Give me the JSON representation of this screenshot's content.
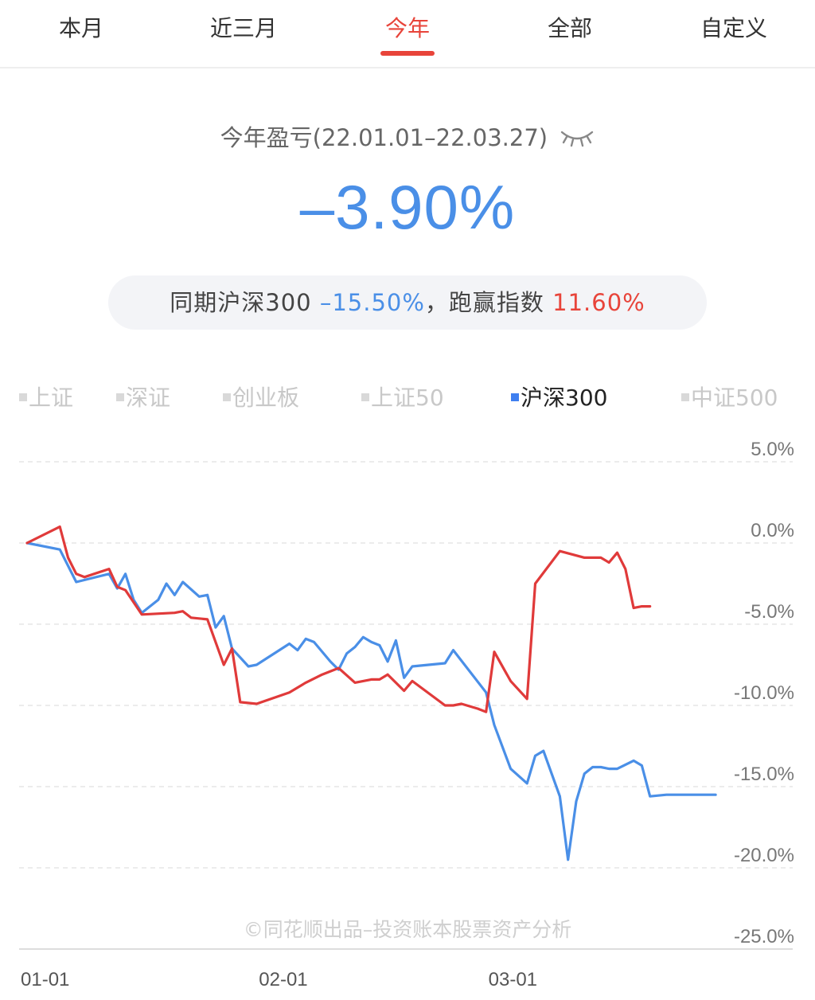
{
  "tabs": [
    {
      "label": "本月",
      "active": false
    },
    {
      "label": "近三月",
      "active": false
    },
    {
      "label": "今年",
      "active": true
    },
    {
      "label": "全部",
      "active": false
    },
    {
      "label": "自定义",
      "active": false
    }
  ],
  "summary": {
    "period_label": "今年盈亏(22.01.01–22.03.27)",
    "value": "–3.90%",
    "compare_prefix": "同期沪深300 ",
    "index_return": "–15.50%",
    "compare_mid": "，跑赢指数 ",
    "excess_return": "11.60%"
  },
  "legend": [
    {
      "label": "上证",
      "active": false
    },
    {
      "label": "深证",
      "active": false
    },
    {
      "label": "创业板",
      "active": false
    },
    {
      "label": "上证50",
      "active": false
    },
    {
      "label": "沪深300",
      "active": true
    },
    {
      "label": "中证500",
      "active": false
    }
  ],
  "watermark": "©同花顺出品–投资账本股票资产分析",
  "colors": {
    "accent": "#e8443a",
    "index": "#4a8fe7",
    "portfolio": "#e03a3a"
  },
  "chart_data": {
    "type": "line",
    "y_ticks": [
      "5.0%",
      "0.0%",
      "-5.0%",
      "-10.0%",
      "-15.0%",
      "-20.0%",
      "-25.0%"
    ],
    "ylim": [
      -25,
      5
    ],
    "x_ticks": [
      "01-01",
      "02-01",
      "03-01"
    ],
    "xlim": [
      0,
      87
    ],
    "grid": true,
    "series": [
      {
        "name": "沪深300",
        "color": "#4a8fe7",
        "x": [
          0,
          4,
          6,
          10,
          11,
          12,
          13,
          14,
          16,
          17,
          18,
          19,
          21,
          22,
          23,
          24,
          25,
          27,
          28,
          32,
          33,
          34,
          35,
          37,
          38,
          39,
          40,
          41,
          42,
          43,
          44,
          45,
          46,
          47,
          51,
          52,
          56,
          57,
          59,
          61,
          62,
          63,
          64,
          65,
          66,
          67,
          68,
          69,
          70,
          71,
          72,
          74,
          75,
          76,
          78,
          80,
          82,
          84
        ],
        "y": [
          0,
          -0.4,
          -2.4,
          -1.9,
          -2.8,
          -1.9,
          -3.5,
          -4.3,
          -3.5,
          -2.5,
          -3.2,
          -2.4,
          -3.3,
          -3.2,
          -5.2,
          -4.5,
          -6.5,
          -7.6,
          -7.5,
          -6.2,
          -6.6,
          -5.9,
          -6.1,
          -7.3,
          -7.8,
          -6.8,
          -6.4,
          -5.8,
          -6.1,
          -6.3,
          -7.3,
          -6.0,
          -8.3,
          -7.6,
          -7.4,
          -6.6,
          -9.2,
          -11.2,
          -13.9,
          -14.8,
          -13.1,
          -12.8,
          -14.2,
          -15.6,
          -19.5,
          -15.9,
          -14.2,
          -13.8,
          -13.8,
          -13.9,
          -13.9,
          -13.4,
          -13.7,
          -15.6,
          -15.5,
          -15.5,
          -15.5,
          -15.5
        ]
      },
      {
        "name": "",
        "color": "#e03a3a",
        "x": [
          0,
          4,
          5,
          6,
          7,
          10,
          11,
          12,
          14,
          18,
          19,
          20,
          22,
          24,
          25,
          26,
          28,
          32,
          34,
          36,
          38,
          40,
          42,
          43,
          44,
          46,
          47,
          51,
          52,
          53,
          55,
          56,
          57,
          59,
          61,
          62,
          65,
          68,
          70,
          71,
          72,
          73,
          74,
          75,
          76
        ],
        "y": [
          0,
          1,
          -0.9,
          -1.9,
          -2.1,
          -1.6,
          -2.7,
          -2.9,
          -4.4,
          -4.3,
          -4.2,
          -4.6,
          -4.7,
          -7.5,
          -6.5,
          -9.8,
          -9.9,
          -9.2,
          -8.6,
          -8.1,
          -7.7,
          -8.6,
          -8.4,
          -8.4,
          -8.1,
          -9.1,
          -8.5,
          -10.0,
          -10.0,
          -9.9,
          -10.2,
          -10.4,
          -6.7,
          -8.5,
          -9.6,
          -2.5,
          -0.5,
          -0.9,
          -0.9,
          -1.2,
          -0.6,
          -1.6,
          -4.0,
          -3.9,
          -3.9
        ]
      }
    ]
  }
}
